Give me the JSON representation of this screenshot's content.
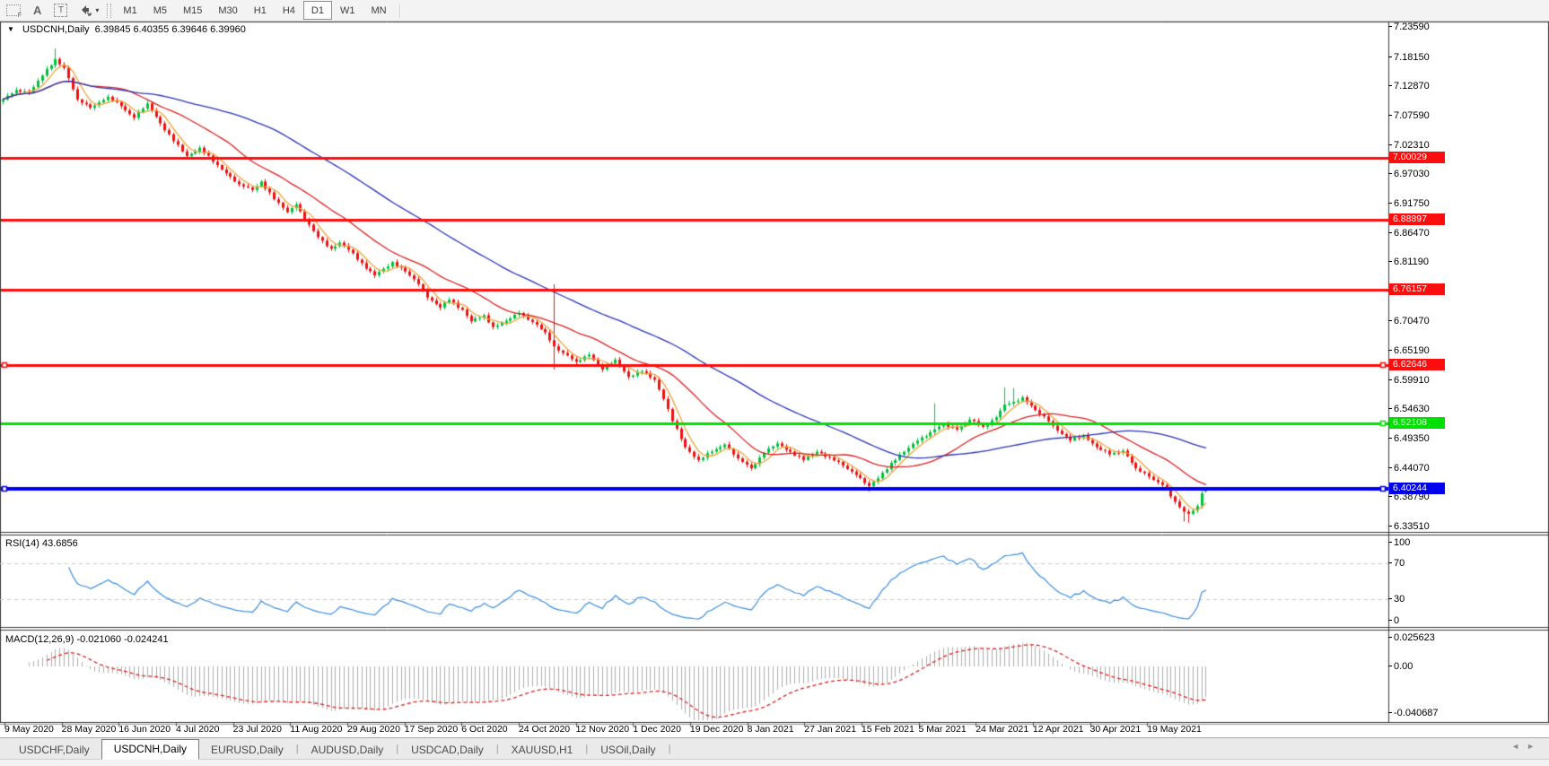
{
  "toolbar": {
    "tools": [
      {
        "name": "grid-f-icon",
        "glyph": "F"
      },
      {
        "name": "text-label-icon",
        "glyph": "A"
      },
      {
        "name": "text-box-icon",
        "glyph": "T"
      },
      {
        "name": "arrow-tools-icon",
        "glyph": "▾"
      }
    ],
    "timeframes": [
      {
        "label": "M1"
      },
      {
        "label": "M5"
      },
      {
        "label": "M15"
      },
      {
        "label": "M30"
      },
      {
        "label": "H1"
      },
      {
        "label": "H4"
      },
      {
        "label": "D1",
        "active": true
      },
      {
        "label": "W1"
      },
      {
        "label": "MN"
      }
    ]
  },
  "chart": {
    "title": {
      "symbol_period": "USDCNH,Daily",
      "open": "6.39845",
      "high": "6.40355",
      "low": "6.39646",
      "close": "6.39960",
      "collapse_glyph": "▼"
    }
  },
  "rsi": {
    "label": "RSI(14) 43.6856",
    "ticks": [
      {
        "v": 100,
        "label": "100"
      },
      {
        "v": 70,
        "label": "70"
      },
      {
        "v": 30,
        "label": "30"
      },
      {
        "v": 0,
        "label": "0"
      }
    ]
  },
  "macd": {
    "label": "MACD(12,26,9) -0.021060 -0.024241",
    "ticks": [
      {
        "v": 0.025623,
        "label": "0.025623"
      },
      {
        "v": 0,
        "label": "0.00"
      },
      {
        "v": -0.040687,
        "label": "-0.040687"
      }
    ]
  },
  "date_axis": {
    "labels": [
      "9 May 2020",
      "28 May 2020",
      "16 Jun 2020",
      "4 Jul 2020",
      "23 Jul 2020",
      "11 Aug 2020",
      "29 Aug 2020",
      "17 Sep 2020",
      "6 Oct 2020",
      "24 Oct 2020",
      "12 Nov 2020",
      "1 Dec 2020",
      "19 Dec 2020",
      "8 Jan 2021",
      "27 Jan 2021",
      "15 Feb 2021",
      "5 Mar 2021",
      "24 Mar 2021",
      "12 Apr 2021",
      "30 Apr 2021",
      "19 May 2021"
    ]
  },
  "tabs": {
    "items": [
      {
        "label": "USDCHF,Daily"
      },
      {
        "label": "USDCNH,Daily",
        "active": true
      },
      {
        "label": "EURUSD,Daily"
      },
      {
        "label": "AUDUSD,Daily"
      },
      {
        "label": "USDCAD,Daily"
      },
      {
        "label": "XAUUSD,H1"
      },
      {
        "label": "USOil,Daily"
      }
    ],
    "scroll_left_glyph": "◄",
    "scroll_right_glyph": "►"
  },
  "chart_data": [
    {
      "type": "candlestick",
      "symbol": "USDCNH",
      "timeframe": "Daily",
      "ohlc_display": {
        "open": 6.39845,
        "high": 6.40355,
        "low": 6.39646,
        "close": 6.3996
      },
      "ylim": [
        6.3254,
        7.2456
      ],
      "y_ticks": [
        "7.23590",
        "7.18150",
        "7.12870",
        "7.07590",
        "7.02310",
        "6.97030",
        "6.91750",
        "6.86470",
        "6.81190",
        "6.75910",
        "6.70470",
        "6.65190",
        "6.59910",
        "6.54630",
        "6.49350",
        "6.44070",
        "6.38790",
        "6.33510"
      ],
      "hlines": [
        {
          "price": 7.00029,
          "label": "7.00029",
          "color": "#fd0d0d",
          "width": 3,
          "handles": []
        },
        {
          "price": 6.88897,
          "label": "6.88897",
          "color": "#fd0d0d",
          "width": 3,
          "handles": []
        },
        {
          "price": 6.76157,
          "label": "6.76157",
          "color": "#fd0d0d",
          "width": 3,
          "handles": []
        },
        {
          "price": 6.62646,
          "label": "6.62646",
          "color": "#fd0d0d",
          "width": 3,
          "handles": [
            "left",
            "right"
          ]
        },
        {
          "price": 6.52108,
          "label": "6.52108",
          "color": "#00e000",
          "width": 3,
          "handles": [
            "right"
          ]
        },
        {
          "price": 6.40244,
          "label": "6.40244",
          "color": "#0000ee",
          "width": 4,
          "handles": [
            "left",
            "right"
          ]
        }
      ],
      "count": 276,
      "close_anchors": [
        [
          0,
          7.105
        ],
        [
          3,
          7.122
        ],
        [
          6,
          7.118
        ],
        [
          9,
          7.148
        ],
        [
          12,
          7.178
        ],
        [
          14,
          7.162
        ],
        [
          17,
          7.105
        ],
        [
          20,
          7.09
        ],
        [
          24,
          7.11
        ],
        [
          27,
          7.093
        ],
        [
          30,
          7.072
        ],
        [
          33,
          7.098
        ],
        [
          36,
          7.062
        ],
        [
          39,
          7.03
        ],
        [
          42,
          7.003
        ],
        [
          45,
          7.018
        ],
        [
          48,
          6.993
        ],
        [
          51,
          6.972
        ],
        [
          54,
          6.952
        ],
        [
          57,
          6.942
        ],
        [
          59,
          6.957
        ],
        [
          62,
          6.925
        ],
        [
          65,
          6.902
        ],
        [
          67,
          6.916
        ],
        [
          69,
          6.888
        ],
        [
          72,
          6.857
        ],
        [
          75,
          6.836
        ],
        [
          77,
          6.847
        ],
        [
          80,
          6.828
        ],
        [
          83,
          6.8
        ],
        [
          85,
          6.788
        ],
        [
          87,
          6.8
        ],
        [
          89,
          6.812
        ],
        [
          92,
          6.795
        ],
        [
          95,
          6.772
        ],
        [
          97,
          6.748
        ],
        [
          100,
          6.73
        ],
        [
          102,
          6.744
        ],
        [
          105,
          6.726
        ],
        [
          107,
          6.705
        ],
        [
          110,
          6.716
        ],
        [
          112,
          6.695
        ],
        [
          115,
          6.706
        ],
        [
          118,
          6.72
        ],
        [
          121,
          6.704
        ],
        [
          124,
          6.685
        ],
        [
          126,
          6.66
        ],
        [
          128,
          6.648
        ],
        [
          131,
          6.632
        ],
        [
          134,
          6.645
        ],
        [
          137,
          6.618
        ],
        [
          140,
          6.636
        ],
        [
          143,
          6.605
        ],
        [
          146,
          6.615
        ],
        [
          149,
          6.6
        ],
        [
          151,
          6.565
        ],
        [
          153,
          6.525
        ],
        [
          156,
          6.478
        ],
        [
          159,
          6.455
        ],
        [
          162,
          6.47
        ],
        [
          165,
          6.483
        ],
        [
          168,
          6.458
        ],
        [
          171,
          6.44
        ],
        [
          174,
          6.468
        ],
        [
          177,
          6.485
        ],
        [
          180,
          6.47
        ],
        [
          183,
          6.455
        ],
        [
          186,
          6.47
        ],
        [
          189,
          6.46
        ],
        [
          192,
          6.445
        ],
        [
          195,
          6.428
        ],
        [
          198,
          6.408
        ],
        [
          200,
          6.422
        ],
        [
          203,
          6.45
        ],
        [
          206,
          6.47
        ],
        [
          209,
          6.49
        ],
        [
          212,
          6.505
        ],
        [
          215,
          6.52
        ],
        [
          218,
          6.51
        ],
        [
          221,
          6.528
        ],
        [
          224,
          6.515
        ],
        [
          227,
          6.532
        ],
        [
          229,
          6.555
        ],
        [
          231,
          6.56
        ],
        [
          233,
          6.568
        ],
        [
          236,
          6.545
        ],
        [
          239,
          6.525
        ],
        [
          241,
          6.508
        ],
        [
          244,
          6.49
        ],
        [
          247,
          6.5
        ],
        [
          250,
          6.478
        ],
        [
          253,
          6.465
        ],
        [
          256,
          6.472
        ],
        [
          259,
          6.44
        ],
        [
          262,
          6.425
        ],
        [
          265,
          6.41
        ],
        [
          268,
          6.38
        ],
        [
          270,
          6.362
        ],
        [
          271,
          6.358
        ],
        [
          273,
          6.372
        ],
        [
          274,
          6.395
        ],
        [
          275,
          6.3996
        ]
      ],
      "overrides": {
        "12": {
          "h": 7.197
        },
        "126": {
          "h": 6.772,
          "l": 6.618
        },
        "198": {
          "l": 6.398
        },
        "213": {
          "h": 6.557
        },
        "229": {
          "h": 6.586
        },
        "231": {
          "h": 6.585
        },
        "270": {
          "l": 6.344
        },
        "271": {
          "l": 6.342
        },
        "275": {
          "o": 6.39845,
          "h": 6.40355,
          "l": 6.39646,
          "c": 6.3996
        }
      },
      "moving_averages": [
        {
          "period": 5,
          "color": "#efa43b"
        },
        {
          "period": 21,
          "color": "#dd2222"
        },
        {
          "period": 55,
          "color": "#2a35b8"
        }
      ],
      "colors": {
        "up": "#00c23c",
        "down": "#ee1111"
      }
    },
    {
      "type": "line",
      "name": "RSI",
      "params": [
        14
      ],
      "current": 43.6856,
      "levels": [
        70,
        30
      ],
      "ylim": [
        -4,
        102
      ],
      "color": "#3b8ee0",
      "level_dash_color": "#c8c8c8",
      "derived_from": "candlestick closes"
    },
    {
      "type": "macd",
      "name": "MACD",
      "params": [
        12,
        26,
        9
      ],
      "current_macd": -0.02106,
      "current_signal": -0.024241,
      "axis_ticks": [
        0.025623,
        0.0,
        -0.040687
      ],
      "hist_color": "#adadad",
      "signal_color": "#e02020",
      "derived_from": "candlestick closes"
    }
  ],
  "layout_colors": {
    "toolbar_bg": "#f3f3f3",
    "pane_bg": "#ffffff",
    "tab_bg": "#eaeaea",
    "axis_text": "#000000"
  }
}
